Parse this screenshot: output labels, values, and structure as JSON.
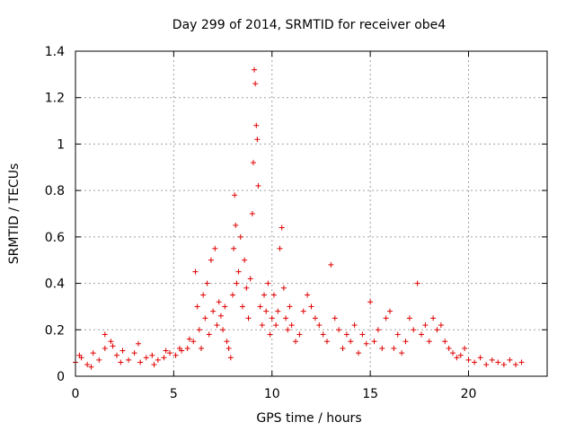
{
  "chart_data": {
    "type": "scatter",
    "title": "Day 299 of 2014, SRMTID for receiver obe4",
    "xlabel": "GPS time / hours",
    "ylabel": "SRMTID / TECUs",
    "xlim": [
      0,
      24
    ],
    "ylim": [
      0,
      1.4
    ],
    "xticks": [
      "0",
      "5",
      "10",
      "15",
      "20"
    ],
    "yticks": [
      "0",
      "0.2",
      "0.4",
      "0.6",
      "0.8",
      "1",
      "1.2",
      "1.4"
    ],
    "grid": true,
    "marker": "+",
    "color": "#e00000",
    "series": [
      {
        "name": "SRMTID",
        "x": [
          0.0,
          0.3,
          0.6,
          0.9,
          1.2,
          1.5,
          1.8,
          2.1,
          2.4,
          2.7,
          3.0,
          3.3,
          3.6,
          3.9,
          4.2,
          4.5,
          4.8,
          5.1,
          5.4,
          5.7,
          6.0,
          6.1,
          6.2,
          6.3,
          6.4,
          6.5,
          6.6,
          6.7,
          6.8,
          6.9,
          7.0,
          7.1,
          7.2,
          7.3,
          7.4,
          7.5,
          7.6,
          7.7,
          7.8,
          7.9,
          8.0,
          8.05,
          8.1,
          8.15,
          8.2,
          8.3,
          8.4,
          8.5,
          8.6,
          8.7,
          8.8,
          8.9,
          9.0,
          9.05,
          9.1,
          9.15,
          9.2,
          9.25,
          9.3,
          9.4,
          9.5,
          9.6,
          9.7,
          9.8,
          9.9,
          10.0,
          10.1,
          10.2,
          10.3,
          10.4,
          10.5,
          10.6,
          10.7,
          10.8,
          10.9,
          11.0,
          11.2,
          11.4,
          11.6,
          11.8,
          12.0,
          12.2,
          12.4,
          12.6,
          12.8,
          13.0,
          13.2,
          13.4,
          13.6,
          13.8,
          14.0,
          14.2,
          14.4,
          14.6,
          14.8,
          15.0,
          15.2,
          15.4,
          15.6,
          15.8,
          16.0,
          16.2,
          16.4,
          16.6,
          16.8,
          17.0,
          17.2,
          17.4,
          17.6,
          17.8,
          18.0,
          18.2,
          18.4,
          18.6,
          18.8,
          19.0,
          19.2,
          19.4,
          19.6,
          19.8,
          20.0,
          20.3,
          20.6,
          20.9,
          21.2,
          21.5,
          21.8,
          22.1,
          22.4,
          22.7,
          0.2,
          0.8,
          1.5,
          1.9,
          2.3,
          3.2,
          4.0,
          4.6,
          5.3,
          5.8
        ],
        "y": [
          0.06,
          0.08,
          0.05,
          0.1,
          0.07,
          0.12,
          0.15,
          0.09,
          0.11,
          0.07,
          0.1,
          0.06,
          0.08,
          0.09,
          0.07,
          0.08,
          0.1,
          0.09,
          0.11,
          0.12,
          0.15,
          0.45,
          0.3,
          0.2,
          0.12,
          0.35,
          0.25,
          0.4,
          0.18,
          0.5,
          0.28,
          0.55,
          0.22,
          0.32,
          0.26,
          0.2,
          0.3,
          0.15,
          0.12,
          0.08,
          0.35,
          0.55,
          0.78,
          0.65,
          0.4,
          0.45,
          0.6,
          0.3,
          0.5,
          0.38,
          0.25,
          0.42,
          0.7,
          0.92,
          1.32,
          1.26,
          1.08,
          1.02,
          0.82,
          0.3,
          0.22,
          0.35,
          0.28,
          0.4,
          0.18,
          0.25,
          0.35,
          0.22,
          0.28,
          0.55,
          0.64,
          0.38,
          0.25,
          0.2,
          0.3,
          0.22,
          0.15,
          0.18,
          0.28,
          0.35,
          0.3,
          0.25,
          0.22,
          0.18,
          0.15,
          0.48,
          0.25,
          0.2,
          0.12,
          0.18,
          0.15,
          0.22,
          0.1,
          0.18,
          0.14,
          0.32,
          0.15,
          0.2,
          0.12,
          0.25,
          0.28,
          0.12,
          0.18,
          0.1,
          0.15,
          0.25,
          0.2,
          0.4,
          0.18,
          0.22,
          0.15,
          0.25,
          0.2,
          0.22,
          0.15,
          0.12,
          0.1,
          0.08,
          0.09,
          0.12,
          0.07,
          0.06,
          0.08,
          0.05,
          0.07,
          0.06,
          0.05,
          0.07,
          0.05,
          0.06,
          0.09,
          0.04,
          0.18,
          0.13,
          0.06,
          0.14,
          0.05,
          0.11,
          0.12,
          0.16
        ]
      }
    ]
  }
}
